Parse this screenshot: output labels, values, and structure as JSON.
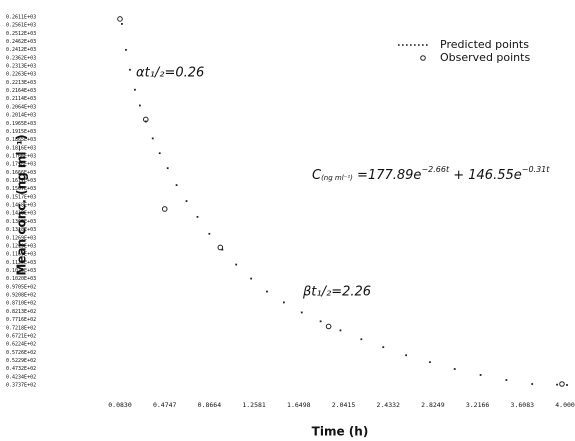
{
  "chart_data": {
    "type": "scatter",
    "x_label": "Time (h)",
    "y_label": "Mean conc. (ng ml⁻¹)",
    "xlim": [
      0.083,
      4.0
    ],
    "xticks": [
      {
        "value": 0.083,
        "label": "0.0830"
      },
      0.4747,
      0.8664,
      1.2581,
      1.6498,
      2.0415,
      2.4332,
      2.8249,
      3.2166,
      3.6083,
      {
        "value": 4.0,
        "label": "4.0000"
      }
    ],
    "ylim": [
      36,
      262
    ],
    "yticks": [
      {
        "value": 261.1,
        "label": "0.2611E+03"
      },
      {
        "value": 256.1,
        "label": "0.2561E+03"
      },
      {
        "value": 251.2,
        "label": "0.2512E+03"
      },
      {
        "value": 246.2,
        "label": "0.2462E+03"
      },
      {
        "value": 241.2,
        "label": "0.2412E+03"
      },
      {
        "value": 236.2,
        "label": "0.2362E+03"
      },
      {
        "value": 231.3,
        "label": "0.2313E+03"
      },
      {
        "value": 226.3,
        "label": "0.2263E+03"
      },
      {
        "value": 221.3,
        "label": "0.2213E+03"
      },
      {
        "value": 216.4,
        "label": "0.2164E+03"
      },
      {
        "value": 211.4,
        "label": "0.2114E+03"
      },
      {
        "value": 206.4,
        "label": "0.2064E+03"
      },
      {
        "value": 201.4,
        "label": "0.2014E+03"
      },
      {
        "value": 196.5,
        "label": "0.1965E+03"
      },
      {
        "value": 191.5,
        "label": "0.1915E+03"
      },
      {
        "value": 186.5,
        "label": "0.1865E+03"
      },
      {
        "value": 181.6,
        "label": "0.1816E+03"
      },
      {
        "value": 176.6,
        "label": "0.1766E+03"
      },
      {
        "value": 171.6,
        "label": "0.1716E+03"
      },
      {
        "value": 166.6,
        "label": "0.1666E+03"
      },
      {
        "value": 161.7,
        "label": "0.1617E+03"
      },
      {
        "value": 156.7,
        "label": "0.1567E+03"
      },
      {
        "value": 151.7,
        "label": "0.1517E+03"
      },
      {
        "value": 146.8,
        "label": "0.1468E+03"
      },
      {
        "value": 141.8,
        "label": "0.1418E+03"
      },
      {
        "value": 136.8,
        "label": "0.1368E+03"
      },
      {
        "value": 131.8,
        "label": "0.1318E+03"
      },
      {
        "value": 126.9,
        "label": "0.1269E+03"
      },
      {
        "value": 121.9,
        "label": "0.1219E+03"
      },
      {
        "value": 116.9,
        "label": "0.1169E+03"
      },
      {
        "value": 112.0,
        "label": "0.1120E+03"
      },
      {
        "value": 107.0,
        "label": "0.1070E+03"
      },
      {
        "value": 102.0,
        "label": "0.1020E+03"
      },
      {
        "value": 97.05,
        "label": "0.9705E+02"
      },
      {
        "value": 92.08,
        "label": "0.9208E+02"
      },
      {
        "value": 87.1,
        "label": "0.8710E+02"
      },
      {
        "value": 82.13,
        "label": "0.8213E+02"
      },
      {
        "value": 77.16,
        "label": "0.7716E+02"
      },
      {
        "value": 72.18,
        "label": "0.7218E+02"
      },
      {
        "value": 67.21,
        "label": "0.6721E+02"
      },
      {
        "value": 62.24,
        "label": "0.6224E+02"
      },
      {
        "value": 57.26,
        "label": "0.5726E+02"
      },
      {
        "value": 52.29,
        "label": "0.5229E+02"
      },
      {
        "value": 47.32,
        "label": "0.4732E+02"
      },
      {
        "value": 42.34,
        "label": "0.4234E+02"
      },
      {
        "value": 37.37,
        "label": "0.3737E+02"
      }
    ],
    "series": [
      {
        "name": "Predicted points",
        "marker": "dot",
        "color": "#222222",
        "x": [
          0.1,
          0.135,
          0.17,
          0.214,
          0.257,
          0.309,
          0.37,
          0.431,
          0.501,
          0.579,
          0.666,
          0.762,
          0.866,
          0.98,
          1.101,
          1.232,
          1.371,
          1.519,
          1.676,
          1.841,
          2.015,
          2.198,
          2.39,
          2.59,
          2.799,
          3.016,
          3.243,
          3.469,
          3.695,
          3.913,
          4.0
        ],
        "values": [
          256.9,
          241.1,
          229.0,
          216.9,
          207.3,
          197.6,
          187.3,
          178.3,
          169.2,
          158.9,
          149.2,
          139.6,
          129.3,
          119.7,
          110.6,
          102.1,
          94.2,
          87.6,
          81.5,
          76.1,
          70.6,
          65.2,
          60.4,
          55.5,
          51.3,
          47.1,
          43.5,
          40.4,
          38.0,
          37.6,
          37.4
        ]
      },
      {
        "name": "Observed points",
        "marker": "circle",
        "color": "#222222",
        "x": [
          0.083,
          0.309,
          0.475,
          0.962,
          1.911,
          3.956
        ],
        "values": [
          259.9,
          198.8,
          144.4,
          121.0,
          73.0,
          38.0
        ]
      }
    ],
    "annotations": [
      "αt₁/₂=0.26",
      "βt₁/₂=2.26"
    ],
    "equation": [
      "C",
      "(ng ml⁻¹)",
      " =177.89e",
      "−2.66t",
      " + 146.55e",
      "−0.31t"
    ]
  }
}
